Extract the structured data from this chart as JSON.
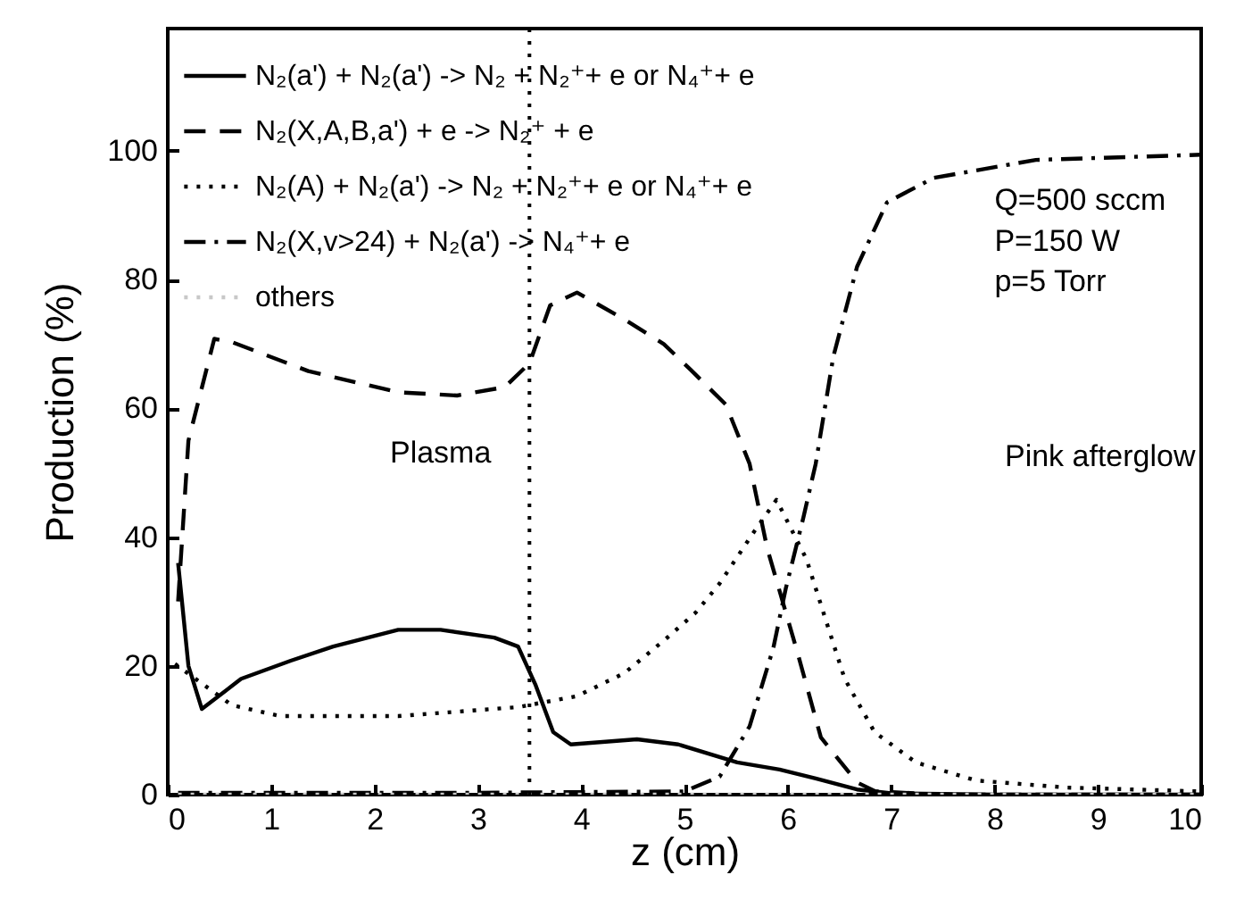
{
  "chart_data": {
    "type": "line",
    "xlabel": "z (cm)",
    "ylabel": "Production (%)",
    "xlim": [
      0,
      10
    ],
    "ylim": [
      0,
      119
    ],
    "xticks": [
      0,
      1,
      2,
      3,
      4,
      5,
      6,
      7,
      8,
      9,
      10
    ],
    "yticks": [
      0,
      20,
      40,
      60,
      80,
      100
    ],
    "legend": "top left",
    "grid": false,
    "annotations": [
      "Plasma",
      "Pink afterglow",
      "Q=500 sccm",
      "P=150 W",
      "p=5 Torr"
    ],
    "ref_lines": [
      {
        "axis": "x",
        "value": 3.5,
        "color": "#000000",
        "line_style": "dotted"
      }
    ],
    "series": [
      {
        "name": "N₂(a') + N₂(a') -> N₂ + N₂⁺+ e or N₄⁺+ e",
        "color": "#000000",
        "line_style": "solid",
        "x": [
          0.1,
          0.2,
          0.33,
          0.71,
          1.19,
          1.6,
          2.23,
          2.64,
          3.16,
          3.39,
          3.56,
          3.73,
          3.9,
          4.54,
          4.94,
          5.51,
          5.92,
          6.27,
          6.67,
          7,
          8,
          9,
          10
        ],
        "values": [
          36,
          20,
          13.3,
          18,
          20.8,
          23,
          25.6,
          25.6,
          24.4,
          23,
          17,
          9.7,
          7.8,
          8.6,
          7.8,
          5,
          3.9,
          2.5,
          0.8,
          0.2,
          0,
          0,
          0
        ]
      },
      {
        "name": "N₂(X,A,B,a') + e -> N₂⁺ + e",
        "color": "#000000",
        "line_style": "dashed",
        "x": [
          0.1,
          0.2,
          0.45,
          0.62,
          1.36,
          2.23,
          2.8,
          3.26,
          3.5,
          3.7,
          3.96,
          4.4,
          4.8,
          5.06,
          5.4,
          5.63,
          5.8,
          6.1,
          6.32,
          6.67,
          6.85,
          7.5,
          10
        ],
        "values": [
          30,
          55,
          70.8,
          70.3,
          65.8,
          62.5,
          62,
          63.3,
          67,
          76,
          78,
          74,
          70,
          66,
          60.6,
          51.4,
          38.3,
          21.7,
          8.9,
          1.9,
          0.5,
          0,
          0
        ]
      },
      {
        "name": "N₂(A) + N₂(a') -> N₂ + N₂⁺+ e or N₄⁺+ e",
        "color": "#000000",
        "line_style": "dotted",
        "x": [
          0.07,
          0.62,
          1.09,
          2.23,
          3.39,
          3.96,
          4.42,
          4.82,
          5.11,
          5.34,
          5.68,
          5.89,
          6.18,
          6.37,
          6.55,
          6.84,
          7.24,
          7.82,
          8.7,
          10
        ],
        "values": [
          20.3,
          13.9,
          12.2,
          12.2,
          13.6,
          15.3,
          18.9,
          24.2,
          28.3,
          32.8,
          41,
          45.8,
          36.6,
          27,
          18,
          9.7,
          5,
          2.2,
          1.1,
          0.5
        ]
      },
      {
        "name": "N₂(X,v>24) + N₂(a') -> N₄⁺+ e",
        "color": "#000000",
        "line_style": "dashdot",
        "x": [
          0.1,
          3,
          5,
          5.34,
          5.63,
          5.86,
          5.98,
          6.15,
          6.27,
          6.44,
          6.67,
          6.96,
          7.41,
          8.4,
          10
        ],
        "values": [
          0.3,
          0.3,
          0.5,
          2.8,
          10.6,
          22.8,
          32,
          43,
          51.4,
          68,
          82,
          92,
          95.8,
          98.6,
          99.4
        ]
      },
      {
        "name": "others",
        "color": "#c8c8c8",
        "line_style": "dotted",
        "x": [
          0.1,
          10
        ],
        "values": [
          0,
          0
        ]
      }
    ]
  }
}
